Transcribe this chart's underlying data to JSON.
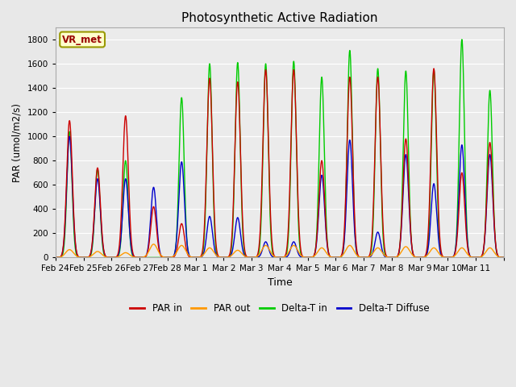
{
  "title": "Photosynthetic Active Radiation",
  "xlabel": "Time",
  "ylabel": "PAR (umol/m2/s)",
  "ylim": [
    0,
    1900
  ],
  "yticks": [
    0,
    200,
    400,
    600,
    800,
    1000,
    1200,
    1400,
    1600,
    1800
  ],
  "background_color": "#e8e8e8",
  "plot_bg_color": "#ebebeb",
  "legend_labels": [
    "PAR in",
    "PAR out",
    "Delta-T in",
    "Delta-T Diffuse"
  ],
  "legend_colors": [
    "#cc0000",
    "#ff9900",
    "#00cc00",
    "#0000cc"
  ],
  "text_box_label": "VR_met",
  "text_box_facecolor": "#ffffcc",
  "text_box_edgecolor": "#999900",
  "days": [
    "Feb 24",
    "Feb 25",
    "Feb 26",
    "Feb 27",
    "Feb 28",
    "Mar 1",
    "Mar 2",
    "Mar 3",
    "Mar 4",
    "Mar 5",
    "Mar 6",
    "Mar 7",
    "Mar 8",
    "Mar 9",
    "Mar 10",
    "Mar 11"
  ],
  "par_in_peaks": [
    1130,
    740,
    1170,
    420,
    280,
    1480,
    1450,
    1550,
    1550,
    800,
    1490,
    1490,
    980,
    1560,
    700,
    950
  ],
  "par_out_peaks": [
    65,
    50,
    40,
    110,
    100,
    80,
    60,
    100,
    100,
    80,
    100,
    80,
    90,
    80,
    80,
    80
  ],
  "delta_t_in_peaks": [
    1040,
    730,
    800,
    0,
    1320,
    1600,
    1610,
    1600,
    1620,
    1490,
    1710,
    1560,
    1540,
    1550,
    1800,
    1380
  ],
  "delta_t_diffuse_peaks": [
    1000,
    650,
    650,
    580,
    790,
    340,
    330,
    130,
    130,
    680,
    970,
    210,
    850,
    610,
    930,
    850
  ],
  "line_width": 1.0,
  "figsize": [
    6.4,
    4.8
  ],
  "dpi": 100
}
